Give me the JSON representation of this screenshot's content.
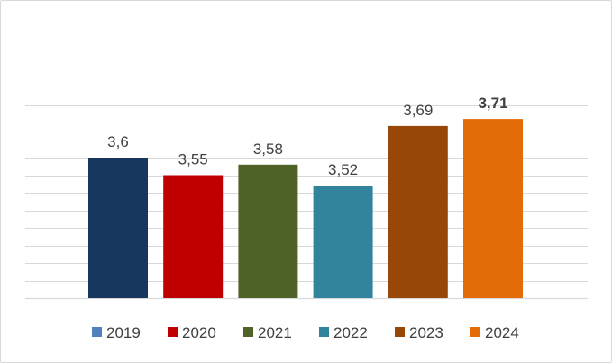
{
  "chart_data": {
    "type": "bar",
    "categories": [
      "2019",
      "2020",
      "2021",
      "2022",
      "2023",
      "2024"
    ],
    "values": [
      3.6,
      3.55,
      3.58,
      3.52,
      3.69,
      3.71
    ],
    "value_labels": [
      "3,6",
      "3,55",
      "3,58",
      "3,52",
      "3,69",
      "3,71"
    ],
    "highlighted_label_index": 5,
    "colors": [
      "#17375e",
      "#c00000",
      "#4f6228",
      "#31849b",
      "#974706",
      "#e36c09"
    ],
    "legend_marker_colors": [
      "#4f81bd",
      "#c00000",
      "#4f6228",
      "#31849b",
      "#974706",
      "#e36c09"
    ],
    "legend": [
      "2019",
      "2020",
      "2021",
      "2022",
      "2023",
      "2024"
    ],
    "legend_position": "bottom",
    "title": "",
    "xlabel": "",
    "ylabel": "",
    "ylim": [
      3.2,
      3.75
    ],
    "grid": true
  }
}
